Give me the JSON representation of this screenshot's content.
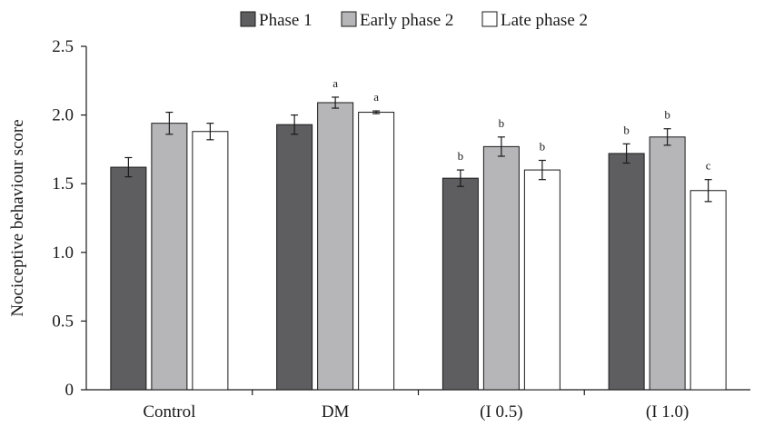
{
  "chart_data": {
    "type": "bar",
    "ylabel": "Nociceptive behaviour score",
    "xlabel": "",
    "ylim": [
      0,
      2.5
    ],
    "yticks": [
      "0",
      "0.5",
      "1.0",
      "1.5",
      "2.0",
      "2.5"
    ],
    "ytick_values": [
      0,
      0.5,
      1.0,
      1.5,
      2.0,
      2.5
    ],
    "grid": false,
    "legend_position": "top",
    "categories": [
      "Control",
      "DM",
      "(I 0.5)",
      "(I 1.0)"
    ],
    "series": [
      {
        "name": "Phase 1",
        "color": "#5e5e60",
        "values": [
          1.62,
          1.93,
          1.54,
          1.72
        ],
        "errors": [
          0.07,
          0.07,
          0.06,
          0.07
        ],
        "labels": [
          "",
          "",
          "b",
          "b"
        ]
      },
      {
        "name": "Early phase 2",
        "color": "#b6b6b8",
        "values": [
          1.94,
          2.09,
          1.77,
          1.84
        ],
        "errors": [
          0.08,
          0.04,
          0.07,
          0.06
        ],
        "labels": [
          "",
          "a",
          "b",
          "b"
        ]
      },
      {
        "name": "Late phase 2",
        "color": "#ffffff",
        "values": [
          1.88,
          2.02,
          1.6,
          1.45
        ],
        "errors": [
          0.06,
          0.01,
          0.07,
          0.08
        ],
        "labels": [
          "",
          "a",
          "b",
          "c"
        ]
      }
    ]
  }
}
